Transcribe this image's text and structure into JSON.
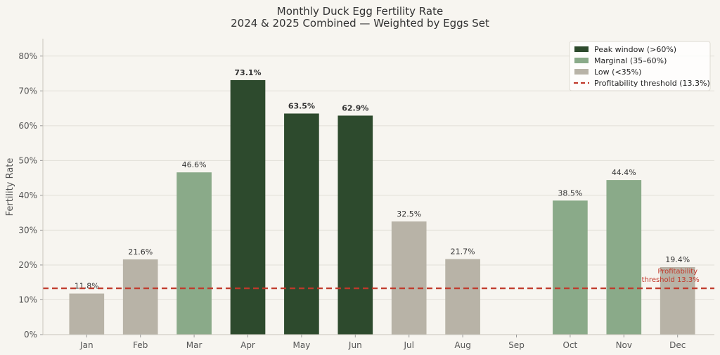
{
  "chart_data": {
    "type": "bar",
    "title": "Monthly Duck Egg Fertility Rate",
    "subtitle": "2024 & 2025 Combined — Weighted by Eggs Set",
    "xlabel": "",
    "ylabel": "Fertility Rate",
    "ylim": [
      0,
      85
    ],
    "yticks": [
      "0%",
      "10%",
      "20%",
      "30%",
      "40%",
      "50%",
      "60%",
      "70%",
      "80%"
    ],
    "categories": [
      "Jan",
      "Feb",
      "Mar",
      "Apr",
      "May",
      "Jun",
      "Jul",
      "Aug",
      "Sep",
      "Oct",
      "Nov",
      "Dec"
    ],
    "values": [
      11.8,
      21.6,
      46.6,
      73.1,
      63.5,
      62.9,
      32.5,
      21.7,
      null,
      38.5,
      44.4,
      19.4
    ],
    "labels": [
      "11.8%",
      "21.6%",
      "46.6%",
      "73.1%",
      "63.5%",
      "62.9%",
      "32.5%",
      "21.7%",
      "",
      "38.5%",
      "44.4%",
      "19.4%"
    ],
    "grid": "horizontal",
    "legend_position": "top-right",
    "legend": [
      {
        "label": "Peak window (>60%)",
        "color": "#2d4a2d",
        "kind": "box"
      },
      {
        "label": "Marginal (35–60%)",
        "color": "#8aaa89",
        "kind": "box"
      },
      {
        "label": "Low (<35%)",
        "color": "#b8b3a7",
        "kind": "box"
      },
      {
        "label": "Profitability threshold (13.3%)",
        "color": "#c0392b",
        "kind": "dashed-line"
      }
    ],
    "threshold": {
      "value": 13.3,
      "annotation_line1": "Profitability",
      "annotation_line2": "threshold 13.3%"
    },
    "colors": {
      "peak": "#2d4a2d",
      "marginal": "#8aaa89",
      "low": "#b8b3a7",
      "threshold": "#c0392b",
      "background": "#f7f5f0",
      "grid": "#e2dfd8"
    }
  }
}
